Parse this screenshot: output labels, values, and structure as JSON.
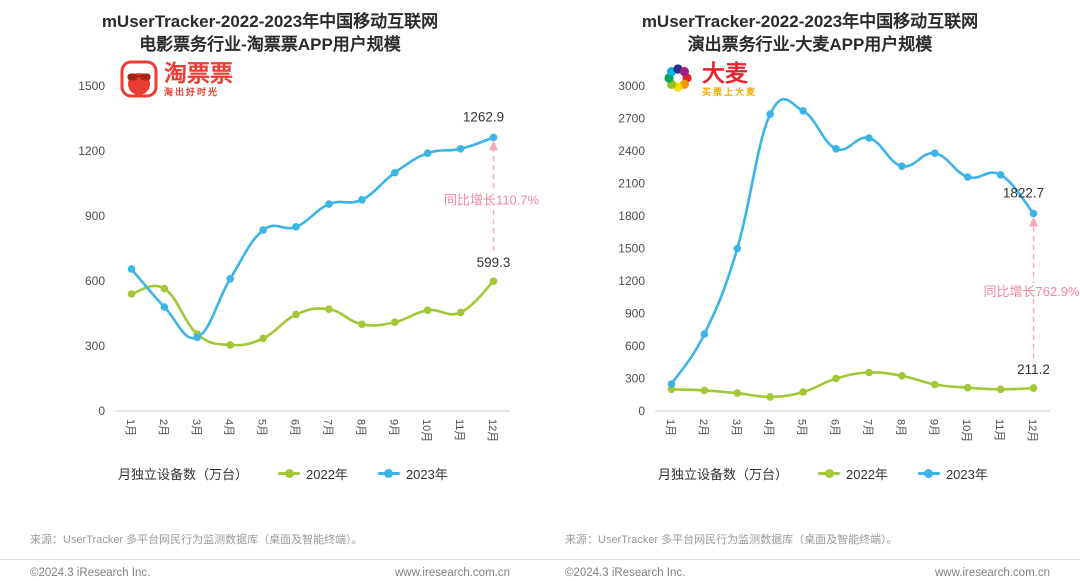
{
  "page": {
    "source_note": "来源：UserTracker 多平台网民行为监测数据库（桌面及智能终端）。",
    "footer": {
      "copyright": "©2024.3 iResearch Inc.",
      "website": "www.iresearch.com.cn"
    }
  },
  "style": {
    "series_green": "#a2c737",
    "series_blue": "#3bb4e7",
    "annotation_pink": "#f2879f",
    "arrow_pink": "#f5a9bb",
    "axis_line": "#cccccc"
  },
  "chart_data": [
    {
      "type": "line",
      "title_line1": "mUserTracker-2022-2023年中国移动互联网",
      "title_line2": "电影票务行业-淘票票APP用户规模",
      "logo": {
        "text": "淘票票",
        "tagline": "淘出好时光",
        "color": "#ec3d33",
        "tagline_color": "#ec3d33"
      },
      "legend_title": "月独立设备数（万台）",
      "xlabel": "",
      "ylabel": "月独立设备数（万台）",
      "categories": [
        "1月",
        "2月",
        "3月",
        "4月",
        "5月",
        "6月",
        "7月",
        "8月",
        "9月",
        "10月",
        "11月",
        "12月"
      ],
      "yticks": [
        0,
        300,
        600,
        900,
        1200,
        1500
      ],
      "ylim": [
        0,
        1500
      ],
      "grid": false,
      "legend_position": "bottom",
      "series": [
        {
          "name": "2022年",
          "color": "#a2c737",
          "values": [
            540,
            565,
            355,
            305,
            335,
            445,
            470,
            400,
            410,
            465,
            455,
            599.3
          ]
        },
        {
          "name": "2023年",
          "color": "#3bb4e7",
          "values": [
            655,
            480,
            340,
            610,
            835,
            850,
            955,
            975,
            1100,
            1190,
            1210,
            1262.9
          ]
        }
      ],
      "annotations": {
        "end_value_2023": "1262.9",
        "end_value_2022": "599.3",
        "yoy_label": "同比增长110.7%"
      }
    },
    {
      "type": "line",
      "title_line1": "mUserTracker-2022-2023年中国移动互联网",
      "title_line2": "演出票务行业-大麦APP用户规模",
      "logo": {
        "text": "大麦",
        "tagline": "买票上大麦",
        "color": "#e6252f",
        "tagline_color": "#f5a800"
      },
      "legend_title": "月独立设备数（万台）",
      "xlabel": "",
      "ylabel": "月独立设备数（万台）",
      "categories": [
        "1月",
        "2月",
        "3月",
        "4月",
        "5月",
        "6月",
        "7月",
        "8月",
        "9月",
        "10月",
        "11月",
        "12月"
      ],
      "yticks": [
        0,
        300,
        600,
        900,
        1200,
        1500,
        1800,
        2100,
        2400,
        2700,
        3000
      ],
      "ylim": [
        0,
        3000
      ],
      "grid": false,
      "legend_position": "bottom",
      "series": [
        {
          "name": "2022年",
          "color": "#a2c737",
          "values": [
            200,
            190,
            165,
            130,
            175,
            300,
            355,
            325,
            245,
            215,
            200,
            211.2
          ]
        },
        {
          "name": "2023年",
          "color": "#3bb4e7",
          "values": [
            250,
            710,
            1500,
            2740,
            2770,
            2420,
            2520,
            2260,
            2380,
            2160,
            2180,
            1822.7
          ]
        }
      ],
      "annotations": {
        "end_value_2023": "1822.7",
        "end_value_2022": "211.2",
        "yoy_label": "同比增长762.9%"
      }
    }
  ]
}
